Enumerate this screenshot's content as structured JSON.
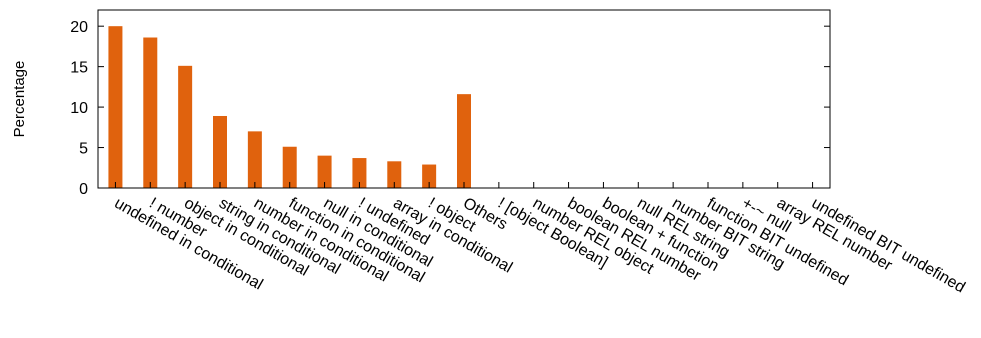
{
  "chart_data": {
    "type": "bar",
    "title": "",
    "xlabel": "",
    "ylabel": "Percentage",
    "ylim": [
      0,
      22
    ],
    "yticks": [
      0,
      5,
      10,
      15,
      20
    ],
    "grid": false,
    "bar_color": "#e0620d",
    "categories": [
      "undefined in conditional",
      "! number",
      "object in conditional",
      "string in conditional",
      "number in conditional",
      "function in conditional",
      "null in conditional",
      "! undefined",
      "array in conditional",
      "! object",
      "Others",
      "! [object Boolean]",
      "number REL object",
      "boolean REL number",
      "boolean + function",
      "null REL string",
      "number BIT string",
      "function BIT undefined",
      "+-~ null",
      "array REL number",
      "undefined BIT undefined"
    ],
    "values": [
      20.0,
      18.6,
      15.1,
      8.9,
      7.0,
      5.1,
      4.0,
      3.7,
      3.3,
      2.9,
      11.6,
      0,
      0,
      0,
      0,
      0,
      0,
      0,
      0,
      0,
      0
    ]
  }
}
